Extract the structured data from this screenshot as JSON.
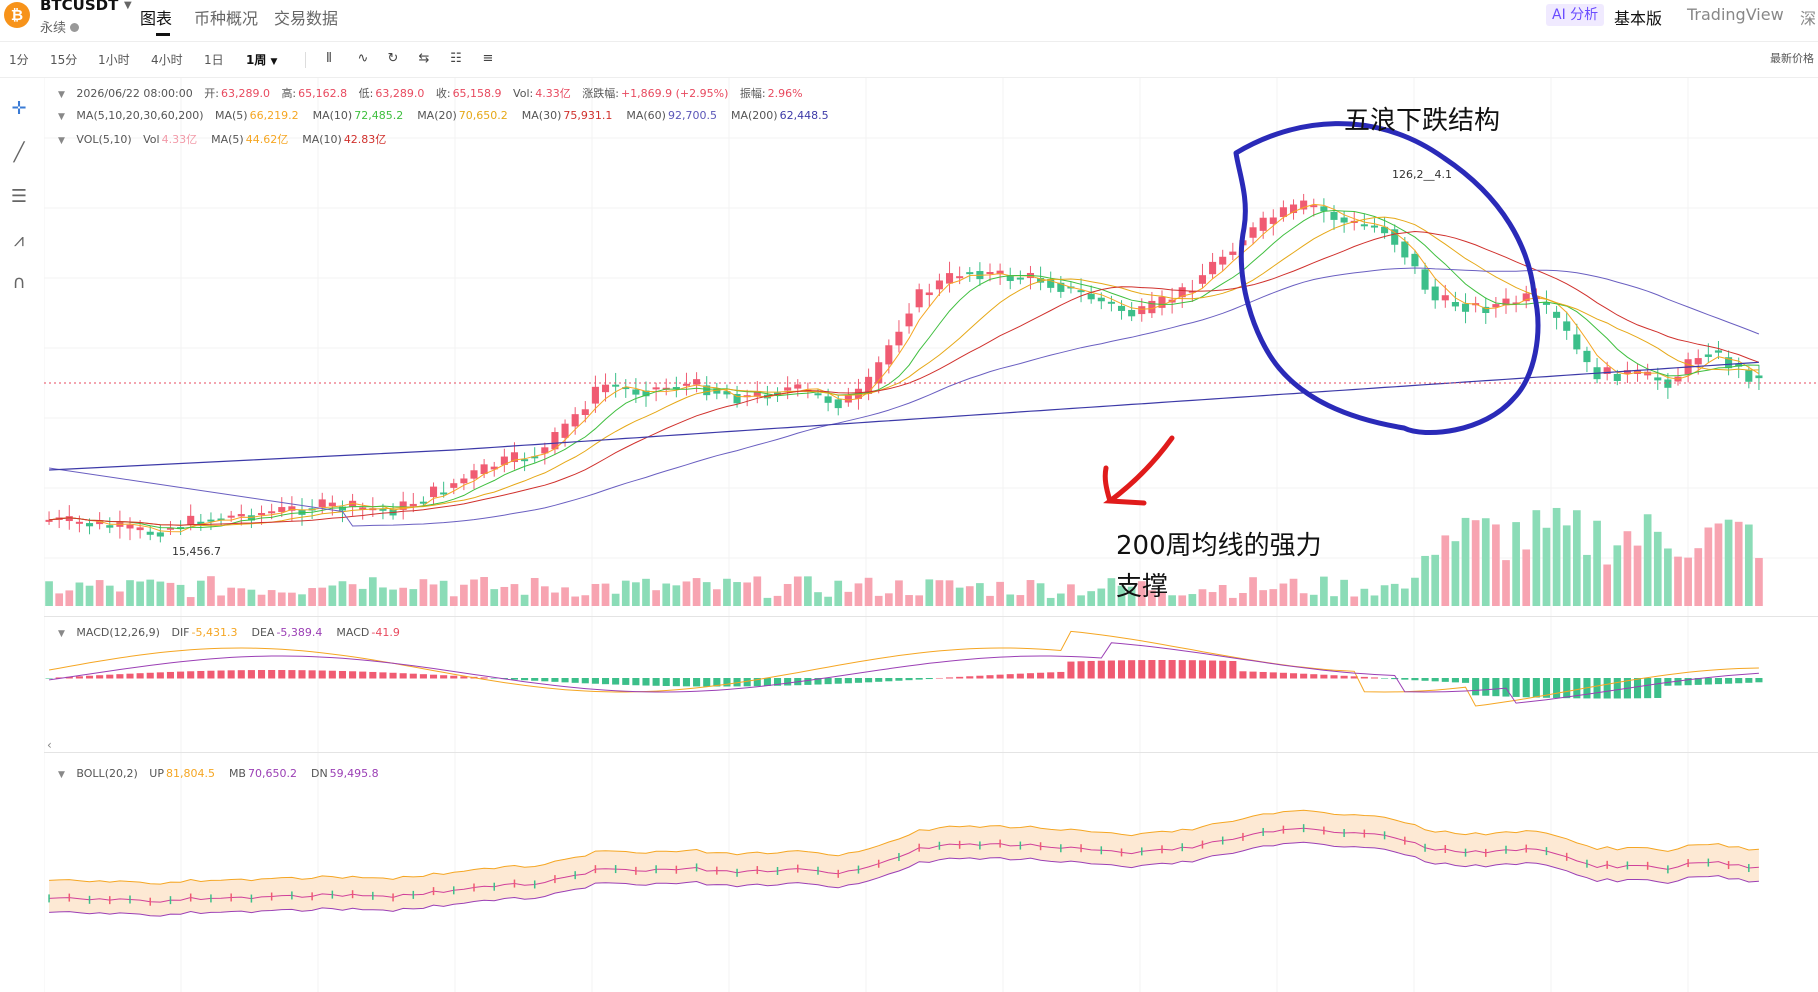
{
  "header": {
    "symbol": "BTCUSDT",
    "logo_glyph": "₿",
    "contract_type": "永续",
    "tabs": [
      "图表",
      "币种概况",
      "交易数据"
    ],
    "ai_label": "AI 分析",
    "basic_label": "基本版",
    "tradingview_label": "TradingView",
    "depth_label": "深"
  },
  "toolbar": {
    "intervals": [
      "1分",
      "15分",
      "1小时",
      "4小时",
      "1日",
      "1周"
    ],
    "selected_interval": "1周",
    "icons": [
      "candlestick-icon",
      "indicator-icon",
      "refresh-icon",
      "settings-sliders-icon",
      "layout-icon",
      "drawing-list-icon"
    ],
    "latest_price_label": "最新价格"
  },
  "left_tools": [
    "crosshair-icon",
    "line-tool-icon",
    "fib-tool-icon",
    "pattern-tool-icon",
    "magnet-icon"
  ],
  "legend": {
    "ohlc": {
      "time": "2026/06/22 08:00:00",
      "open_label": "开:",
      "open": "63,289.0",
      "high_label": "高:",
      "high": "65,162.8",
      "low_label": "低:",
      "low": "63,289.0",
      "close_label": "收:",
      "close": "65,158.9",
      "vol_label": "Vol:",
      "vol": "4.33亿",
      "chg_label": "涨跌幅:",
      "chg": "+1,869.9 (+2.95%)",
      "amp_label": "振幅:",
      "amp": "2.96%"
    },
    "ma": {
      "name": "MA(5,10,20,30,60,200)",
      "items": [
        {
          "label": "MA(5)",
          "value": "66,219.2",
          "color": "#f5a623"
        },
        {
          "label": "MA(10)",
          "value": "72,485.2",
          "color": "#3fbf3f"
        },
        {
          "label": "MA(20)",
          "value": "70,650.2",
          "color": "#e6a817"
        },
        {
          "label": "MA(30)",
          "value": "75,931.1",
          "color": "#d0312d"
        },
        {
          "label": "MA(60)",
          "value": "92,700.5",
          "color": "#5b57b8"
        },
        {
          "label": "MA(200)",
          "value": "62,448.5",
          "color": "#3d3aa8"
        }
      ]
    },
    "vol": {
      "name": "VOL(5,10)",
      "items": [
        {
          "label": "Vol",
          "value": "4.33亿",
          "color": "#f29aa8"
        },
        {
          "label": "MA(5)",
          "value": "44.62亿",
          "color": "#f5a623"
        },
        {
          "label": "MA(10)",
          "value": "42.83亿",
          "color": "#d0312d"
        }
      ]
    },
    "macd": {
      "name": "MACD(12,26,9)",
      "items": [
        {
          "label": "DIF",
          "value": "-5,431.3",
          "color": "#f5a623"
        },
        {
          "label": "DEA",
          "value": "-5,389.4",
          "color": "#9b3fb5"
        },
        {
          "label": "MACD",
          "value": "-41.9",
          "color": "#e84a5f"
        }
      ]
    },
    "boll": {
      "name": "BOLL(20,2)",
      "items": [
        {
          "label": "UP",
          "value": "81,804.5",
          "color": "#f5a623"
        },
        {
          "label": "MB",
          "value": "70,650.2",
          "color": "#9b3fb5"
        },
        {
          "label": "DN",
          "value": "59,495.8",
          "color": "#9b3fb5"
        }
      ]
    }
  },
  "chart_labels": {
    "high_marker": "126,2__4.1",
    "low_marker": "15,456.7"
  },
  "annotations": {
    "title_text": "五浪下跌结构",
    "support_line1": "200周均线的强力",
    "support_line2": "支撑"
  },
  "colors": {
    "up": "#f05b72",
    "down": "#3cbf8a",
    "vol_up": "#f7a4b1",
    "vol_down": "#8bdcb7",
    "ma5": "#f5a623",
    "ma10": "#3fbf3f",
    "ma20": "#e6a817",
    "ma30": "#d0312d",
    "ma60": "#6a5fc1",
    "ma200": "#3d3aa8",
    "annotation_circle": "#2a2ab8",
    "annotation_arrow": "#e01b1b",
    "boll_fill": "#fde9d4"
  }
}
